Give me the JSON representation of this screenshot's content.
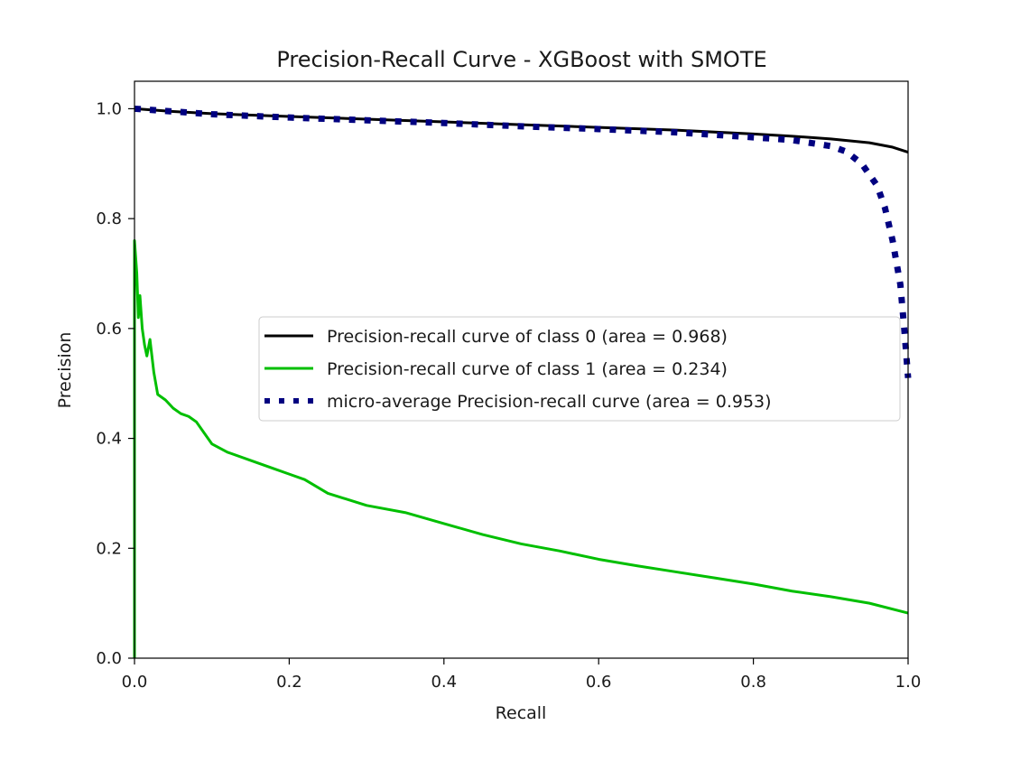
{
  "chart_data": {
    "type": "line",
    "title": "Precision-Recall Curve - XGBoost with SMOTE",
    "xlabel": "Recall",
    "ylabel": "Precision",
    "xlim": [
      0.0,
      1.0
    ],
    "ylim": [
      0.0,
      1.05
    ],
    "xticks": [
      "0.0",
      "0.2",
      "0.4",
      "0.6",
      "0.8",
      "1.0"
    ],
    "yticks": [
      "0.0",
      "0.2",
      "0.4",
      "0.6",
      "0.8",
      "1.0"
    ],
    "grid": false,
    "legend_position": "center-right",
    "series": [
      {
        "name": "Precision-recall curve of class 0 (area = 0.968)",
        "color": "#000000",
        "style": "solid",
        "points": [
          [
            0.0,
            1.0
          ],
          [
            0.05,
            0.995
          ],
          [
            0.1,
            0.991
          ],
          [
            0.2,
            0.986
          ],
          [
            0.3,
            0.981
          ],
          [
            0.4,
            0.976
          ],
          [
            0.5,
            0.971
          ],
          [
            0.6,
            0.966
          ],
          [
            0.7,
            0.961
          ],
          [
            0.8,
            0.954
          ],
          [
            0.85,
            0.95
          ],
          [
            0.9,
            0.945
          ],
          [
            0.95,
            0.938
          ],
          [
            0.98,
            0.93
          ],
          [
            1.0,
            0.921
          ]
        ]
      },
      {
        "name": "Precision-recall curve of class 1 (area = 0.234)",
        "color": "#00bf00",
        "style": "solid",
        "points": [
          [
            0.0,
            0.0
          ],
          [
            0.0,
            0.76
          ],
          [
            0.003,
            0.7
          ],
          [
            0.005,
            0.62
          ],
          [
            0.007,
            0.66
          ],
          [
            0.01,
            0.6
          ],
          [
            0.013,
            0.57
          ],
          [
            0.016,
            0.55
          ],
          [
            0.02,
            0.58
          ],
          [
            0.025,
            0.52
          ],
          [
            0.03,
            0.48
          ],
          [
            0.04,
            0.47
          ],
          [
            0.05,
            0.455
          ],
          [
            0.06,
            0.445
          ],
          [
            0.07,
            0.44
          ],
          [
            0.08,
            0.43
          ],
          [
            0.09,
            0.41
          ],
          [
            0.1,
            0.39
          ],
          [
            0.12,
            0.375
          ],
          [
            0.15,
            0.36
          ],
          [
            0.18,
            0.345
          ],
          [
            0.2,
            0.335
          ],
          [
            0.22,
            0.325
          ],
          [
            0.25,
            0.3
          ],
          [
            0.3,
            0.278
          ],
          [
            0.35,
            0.265
          ],
          [
            0.4,
            0.245
          ],
          [
            0.45,
            0.225
          ],
          [
            0.5,
            0.208
          ],
          [
            0.55,
            0.195
          ],
          [
            0.6,
            0.18
          ],
          [
            0.65,
            0.168
          ],
          [
            0.7,
            0.157
          ],
          [
            0.75,
            0.146
          ],
          [
            0.8,
            0.135
          ],
          [
            0.85,
            0.122
          ],
          [
            0.9,
            0.112
          ],
          [
            0.95,
            0.1
          ],
          [
            1.0,
            0.082
          ]
        ]
      },
      {
        "name": "micro-average Precision-recall curve (area = 0.953)",
        "color": "#000080",
        "style": "dotted",
        "points": [
          [
            0.0,
            1.0
          ],
          [
            0.1,
            0.99
          ],
          [
            0.2,
            0.984
          ],
          [
            0.3,
            0.979
          ],
          [
            0.4,
            0.974
          ],
          [
            0.5,
            0.968
          ],
          [
            0.6,
            0.963
          ],
          [
            0.7,
            0.957
          ],
          [
            0.8,
            0.948
          ],
          [
            0.85,
            0.943
          ],
          [
            0.9,
            0.932
          ],
          [
            0.92,
            0.922
          ],
          [
            0.94,
            0.9
          ],
          [
            0.96,
            0.86
          ],
          [
            0.97,
            0.82
          ],
          [
            0.98,
            0.76
          ],
          [
            0.99,
            0.68
          ],
          [
            0.995,
            0.6
          ],
          [
            1.0,
            0.51
          ]
        ]
      }
    ]
  }
}
